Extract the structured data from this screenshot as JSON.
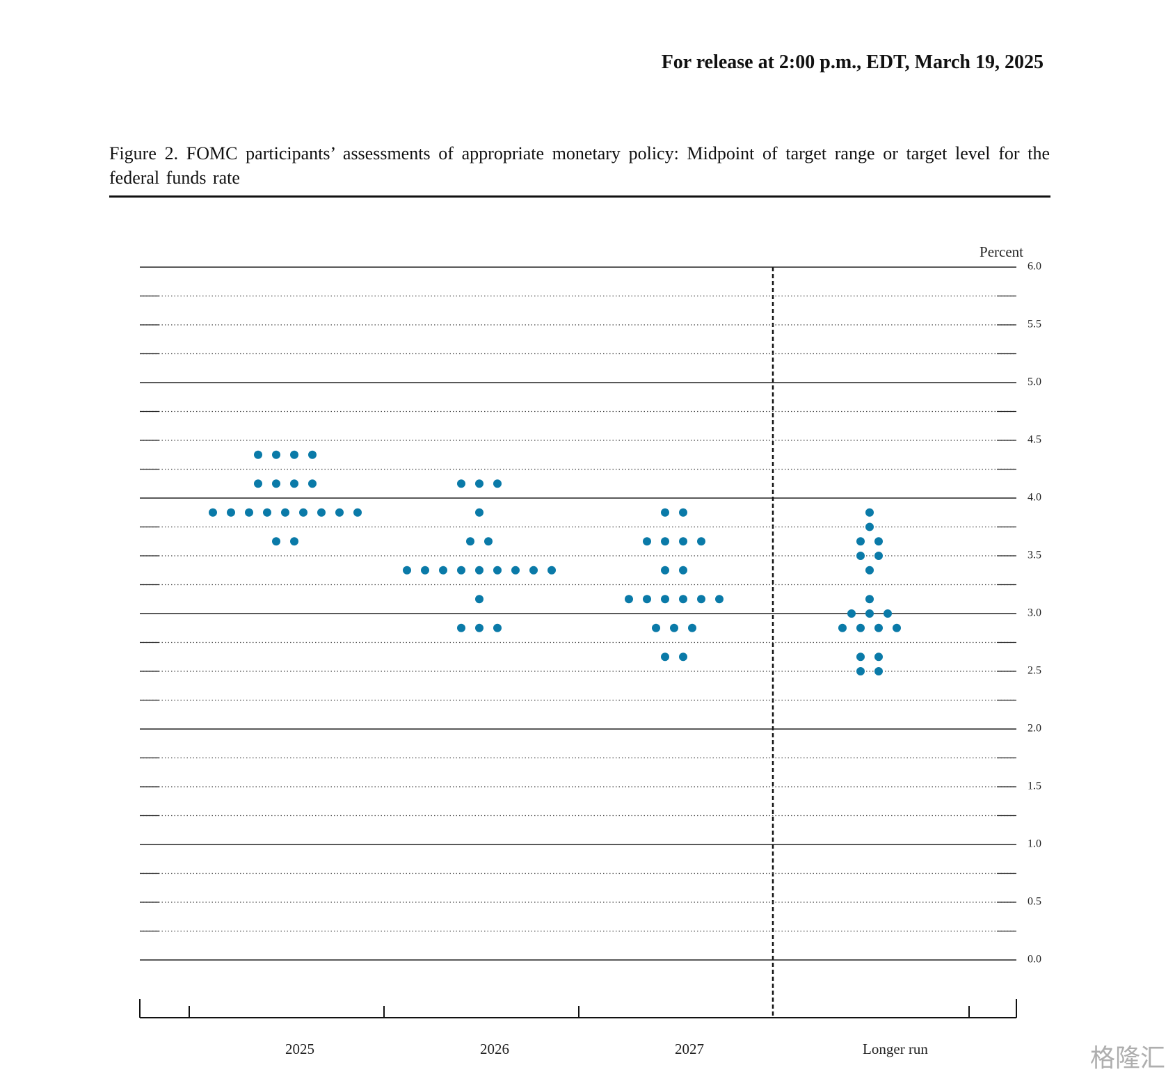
{
  "header": {
    "release": "For release at 2:00 p.m., EDT, March 19, 2025"
  },
  "chart_data": {
    "type": "dot",
    "title": "Figure 2.  FOMC participants’ assessments of appropriate monetary policy: Midpoint of target range or target level for the federal funds rate",
    "y_label": "Percent",
    "categories": [
      "2025",
      "2026",
      "2027",
      "Longer run"
    ],
    "values": [
      [
        4.375,
        4.375,
        4.375,
        4.375,
        4.125,
        4.125,
        4.125,
        4.125,
        3.875,
        3.875,
        3.875,
        3.875,
        3.875,
        3.875,
        3.875,
        3.875,
        3.875,
        3.625,
        3.625
      ],
      [
        4.125,
        4.125,
        4.125,
        3.875,
        3.625,
        3.625,
        3.375,
        3.375,
        3.375,
        3.375,
        3.375,
        3.375,
        3.375,
        3.375,
        3.375,
        3.125,
        2.875,
        2.875,
        2.875
      ],
      [
        3.875,
        3.875,
        3.625,
        3.625,
        3.625,
        3.625,
        3.375,
        3.375,
        3.125,
        3.125,
        3.125,
        3.125,
        3.125,
        3.125,
        2.875,
        2.875,
        2.875,
        2.625,
        2.625
      ],
      [
        3.875,
        3.75,
        3.625,
        3.625,
        3.5,
        3.5,
        3.375,
        3.125,
        3.0,
        3.0,
        3.0,
        2.875,
        2.875,
        2.875,
        2.875,
        2.625,
        2.625,
        2.5,
        2.5
      ]
    ],
    "color": "#0a7aa8",
    "ylim": [
      0,
      6
    ],
    "yticks": [
      {
        "value": 0,
        "label": "0.0"
      },
      {
        "value": 0.5,
        "label": "0.5"
      },
      {
        "value": 1,
        "label": "1.0"
      },
      {
        "value": 1.5,
        "label": "1.5"
      },
      {
        "value": 2,
        "label": "2.0"
      },
      {
        "value": 2.5,
        "label": "2.5"
      },
      {
        "value": 3,
        "label": "3.0"
      },
      {
        "value": 3.5,
        "label": "3.5"
      },
      {
        "value": 4,
        "label": "4.0"
      },
      {
        "value": 4.5,
        "label": "4.5"
      },
      {
        "value": 5,
        "label": "5.0"
      },
      {
        "value": 5.5,
        "label": "5.5"
      },
      {
        "value": 6,
        "label": "6.0"
      }
    ],
    "minor_yticks": [
      0.25,
      0.75,
      1.25,
      1.75,
      2.25,
      2.75,
      3.25,
      3.75,
      4.25,
      4.75,
      5.25,
      5.75
    ],
    "grid": true
  },
  "watermark": "格隆汇"
}
